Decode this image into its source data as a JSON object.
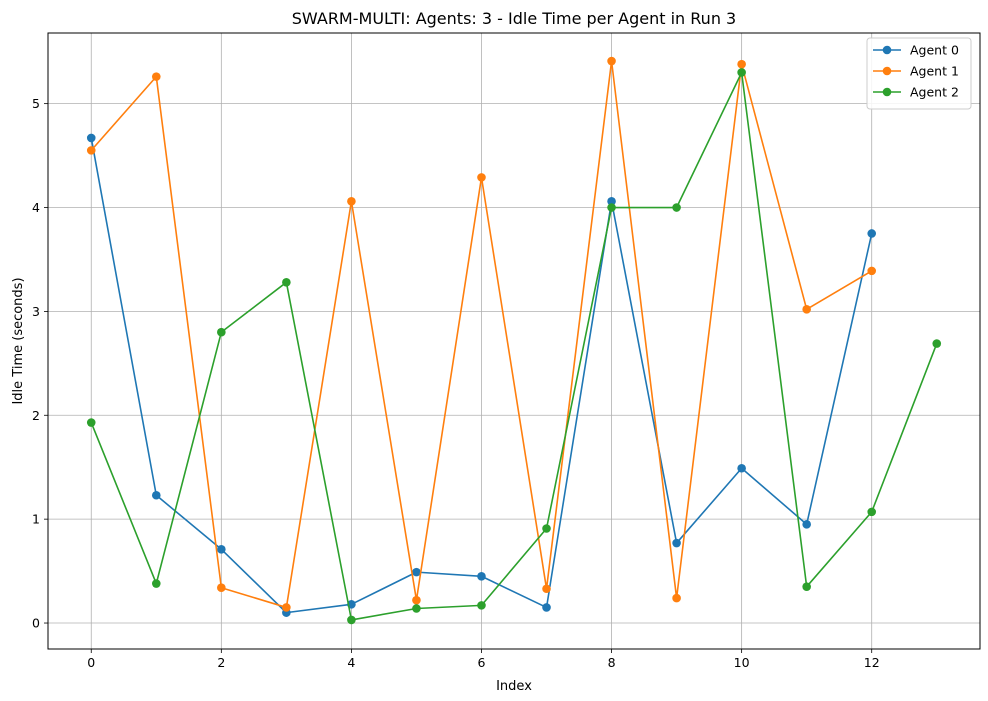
{
  "chart_data": {
    "type": "line",
    "title": "SWARM-MULTI: Agents: 3 - Idle Time per Agent in Run 3",
    "xlabel": "Index",
    "ylabel": "Idle Time (seconds)",
    "xlim": [
      -0.665,
      13.665
    ],
    "ylim": [
      -0.25,
      5.68
    ],
    "xticks": [
      0,
      2,
      4,
      6,
      8,
      10,
      12
    ],
    "xtick_labels": [
      "0",
      "2",
      "4",
      "6",
      "8",
      "10",
      "12"
    ],
    "yticks": [
      0,
      1,
      2,
      3,
      4,
      5
    ],
    "ytick_labels": [
      "0",
      "1",
      "2",
      "3",
      "4",
      "5"
    ],
    "grid": true,
    "legend_position": "top-right",
    "series": [
      {
        "name": "Agent 0",
        "color": "#1f77b4",
        "x": [
          0,
          1,
          2,
          3,
          4,
          5,
          6,
          7,
          8,
          9,
          10,
          11,
          12
        ],
        "values": [
          4.67,
          1.23,
          0.71,
          0.1,
          0.18,
          0.49,
          0.45,
          0.15,
          4.06,
          0.77,
          1.49,
          0.95,
          3.75
        ]
      },
      {
        "name": "Agent 1",
        "color": "#ff7f0e",
        "x": [
          0,
          1,
          2,
          3,
          4,
          5,
          6,
          7,
          8,
          9,
          10,
          11,
          12
        ],
        "values": [
          4.55,
          5.26,
          0.34,
          0.15,
          4.06,
          0.22,
          4.29,
          0.33,
          5.41,
          0.24,
          5.38,
          3.02,
          3.39
        ]
      },
      {
        "name": "Agent 2",
        "color": "#2ca02c",
        "x": [
          0,
          1,
          2,
          3,
          4,
          5,
          6,
          7,
          8,
          9,
          10,
          11,
          12,
          13
        ],
        "values": [
          1.93,
          0.38,
          2.8,
          3.28,
          0.03,
          0.14,
          0.17,
          0.91,
          4.0,
          4.0,
          5.3,
          0.35,
          1.07,
          2.69
        ]
      }
    ]
  }
}
